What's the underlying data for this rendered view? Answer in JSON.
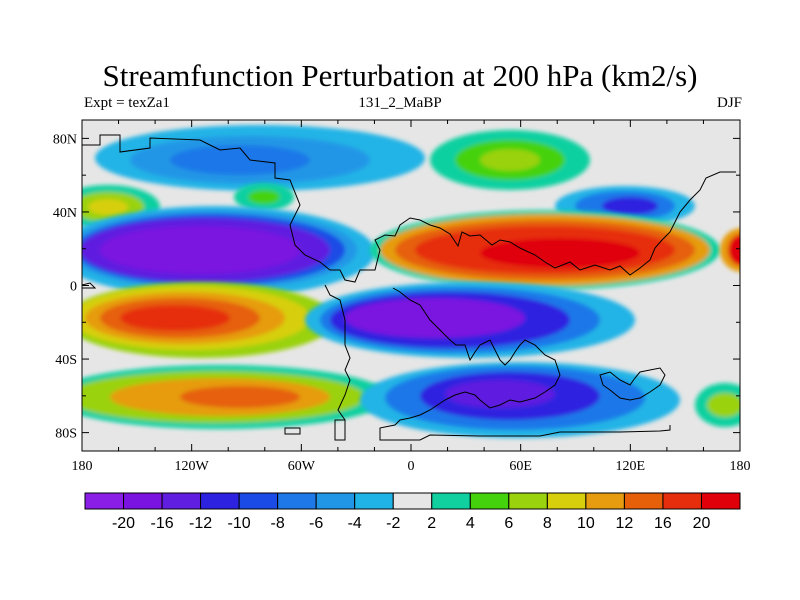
{
  "chart_data": {
    "type": "filled-contour-map",
    "title": "Streamfunction Perturbation at 200 hPa (km2/s)",
    "left_string": "Expt = texZa1",
    "center_string": "131_2_MaBP",
    "right_string": "DJF",
    "x_ticks": [
      "180",
      "120W",
      "60W",
      "0",
      "60E",
      "120E",
      "180"
    ],
    "y_ticks": [
      "80N",
      "40N",
      "0",
      "40S",
      "80S"
    ],
    "levels": [
      "-20",
      "-16",
      "-12",
      "-10",
      "-8",
      "-6",
      "-4",
      "-2",
      "2",
      "4",
      "6",
      "8",
      "10",
      "12",
      "16",
      "20"
    ],
    "colors": [
      "#8b1ee6",
      "#7a12e0",
      "#5f1ee0",
      "#2d22e0",
      "#1a4be6",
      "#1e78e8",
      "#2196e6",
      "#20b4e6",
      "#e6e6e6",
      "#10d0a0",
      "#44d20c",
      "#9ad20e",
      "#d7cf0c",
      "#e69c0e",
      "#e6600a",
      "#e62e0c",
      "#e0000a"
    ]
  }
}
